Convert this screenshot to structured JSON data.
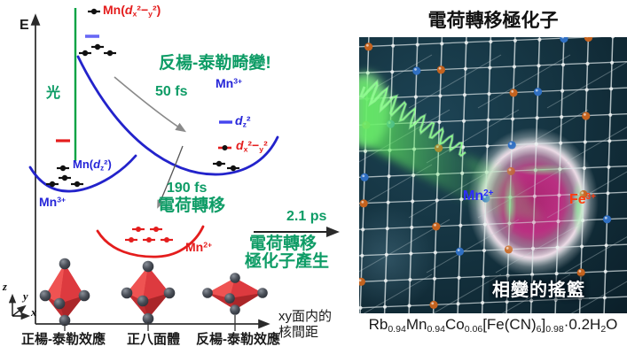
{
  "colors": {
    "green_text": "#0e9c66",
    "light_green_line": "#00a344",
    "blue_curve": "#2323cb",
    "red_curve": "#e41d1d",
    "octahedron_red": "#d23438",
    "photo_mn_label": "#2d2dff",
    "photo_fe_label": "#ff3c0f"
  },
  "energy_diagram": {
    "e_axis": "E",
    "light": "光",
    "labels": {
      "jt_distortion": "反楊-泰勒畸變!",
      "t50": "50 fs",
      "t190": "190 fs",
      "charge_transfer": "電荷轉移",
      "t21": "2.1 ps",
      "ct_result_line1": "電荷轉移",
      "ct_result_line2": "極化子產生",
      "xaxis_line1": "xy面内的",
      "xaxis_line2": "核間距",
      "oct_left": "正楊-泰勒效應",
      "oct_mid": "正八面體",
      "oct_right": "反楊-泰勒效應",
      "axis_z": "z",
      "axis_y": "y",
      "axis_x": "x"
    },
    "rich": {
      "mn_dx2y2": [
        {
          "t": "Mn("
        },
        {
          "t": "d",
          "i": true
        },
        {
          "t": "x",
          "sub": true
        },
        {
          "t": "²−"
        },
        {
          "t": "y",
          "sub": true
        },
        {
          "t": "²"
        },
        {
          "t": ")"
        }
      ],
      "mn_dz2": [
        {
          "t": "Mn("
        },
        {
          "t": "d",
          "i": true
        },
        {
          "t": "z",
          "sub": true
        },
        {
          "t": "²"
        },
        {
          "t": ")"
        }
      ],
      "mn3": [
        {
          "t": "Mn"
        },
        {
          "t": "3+",
          "sup": true
        }
      ],
      "mn2": [
        {
          "t": "Mn"
        },
        {
          "t": "2+",
          "sup": true
        }
      ],
      "dz2": [
        {
          "t": "d",
          "i": true
        },
        {
          "t": "z",
          "sub": true
        },
        {
          "t": "²"
        }
      ],
      "dx2y2": [
        {
          "t": "d",
          "i": true
        },
        {
          "t": "x",
          "sub": true
        },
        {
          "t": "²−"
        },
        {
          "t": "y",
          "sub": true
        },
        {
          "t": "²"
        }
      ]
    }
  },
  "right_panel": {
    "title": "電荷轉移極化子",
    "cradle": "相變的搖籃",
    "fe3": [
      {
        "t": "Fe"
      },
      {
        "t": "3+",
        "sup": true
      }
    ],
    "formula": [
      {
        "t": "Rb"
      },
      {
        "t": "0.94",
        "sub": true
      },
      {
        "t": "Mn"
      },
      {
        "t": "0.94",
        "sub": true
      },
      {
        "t": "Co"
      },
      {
        "t": "0.06",
        "sub": true
      },
      {
        "t": "[Fe(CN)"
      },
      {
        "t": "6",
        "sub": true
      },
      {
        "t": "]"
      },
      {
        "t": "0.98",
        "sub": true
      },
      {
        "t": "·0.2H"
      },
      {
        "t": "2",
        "sub": true
      },
      {
        "t": "O"
      }
    ]
  }
}
